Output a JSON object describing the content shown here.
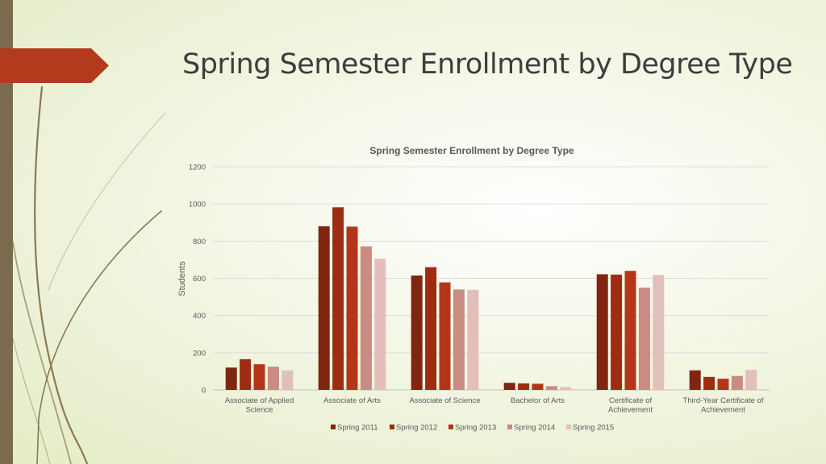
{
  "slide": {
    "title": "Spring Semester Enrollment by Degree Type"
  },
  "colors": {
    "left_bar": "#7a6b4f",
    "accent": "#b33a1d",
    "decor_lines": "#8b7a52"
  },
  "chart_data": {
    "type": "bar",
    "title": "Spring Semester Enrollment by Degree Type",
    "xlabel": "",
    "ylabel": "Students",
    "ylim": [
      0,
      1200
    ],
    "yticks": [
      0,
      200,
      400,
      600,
      800,
      1000,
      1200
    ],
    "grid": true,
    "legend_position": "bottom",
    "categories": [
      [
        "Associate of Applied",
        "Science"
      ],
      [
        "Associate of Arts"
      ],
      [
        "Associate of Science"
      ],
      [
        "Bachelor of Arts"
      ],
      [
        "Certificate of",
        "Achievement"
      ],
      [
        "Third-Year Certificate of",
        "Achievement"
      ]
    ],
    "series": [
      {
        "name": "Spring 2011",
        "color": "#7f2510",
        "values": [
          120,
          880,
          615,
          38,
          622,
          105
        ]
      },
      {
        "name": "Spring 2012",
        "color": "#9e2c12",
        "values": [
          165,
          982,
          660,
          35,
          620,
          70
        ]
      },
      {
        "name": "Spring 2013",
        "color": "#b3351a",
        "values": [
          138,
          878,
          578,
          33,
          640,
          60
        ]
      },
      {
        "name": "Spring 2014",
        "color": "#c98b82",
        "values": [
          125,
          772,
          540,
          20,
          550,
          75
        ]
      },
      {
        "name": "Spring 2015",
        "color": "#e2bfbb",
        "values": [
          105,
          705,
          538,
          15,
          618,
          108
        ]
      }
    ]
  }
}
